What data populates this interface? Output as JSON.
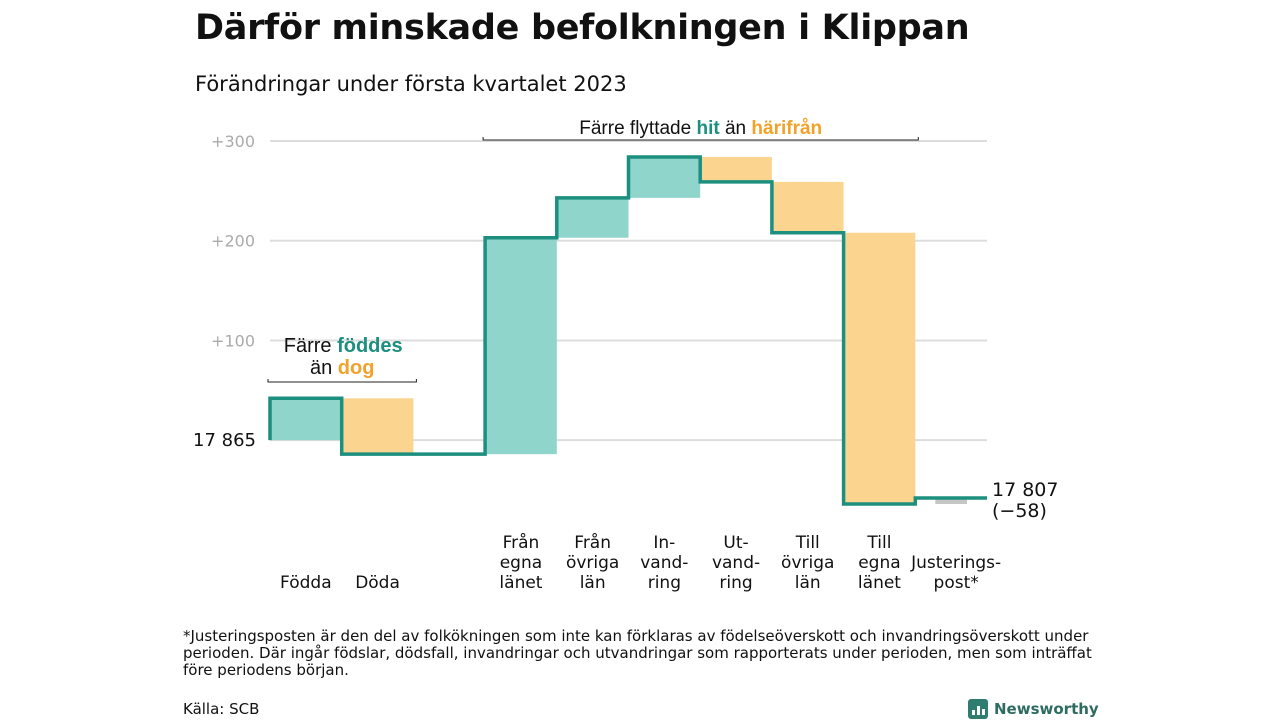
{
  "header": {
    "title": "Därför minskade befolkningen i Klippan",
    "subtitle": "Förändringar under första kvartalet 2023"
  },
  "chart_data": {
    "type": "waterfall",
    "baseline": {
      "value": 17865,
      "label": "17 865"
    },
    "end": {
      "value": 17807,
      "label": "17 807",
      "change_label": "(−58)"
    },
    "y_axis": {
      "range": [
        -65,
        302
      ],
      "ticks": [
        {
          "value": 100,
          "label": "+100"
        },
        {
          "value": 200,
          "label": "+200"
        },
        {
          "value": 300,
          "label": "+300"
        }
      ],
      "grid": true
    },
    "steps": [
      {
        "name": "Födda",
        "label_lines": [
          "Födda"
        ],
        "from": 0,
        "to": 42,
        "kind": "in"
      },
      {
        "name": "Döda",
        "label_lines": [
          "Döda"
        ],
        "from": 42,
        "to": -14,
        "kind": "out"
      },
      {
        "name": "",
        "label_lines": [],
        "from": -14,
        "to": -14,
        "kind": "gap"
      },
      {
        "name": "Från egna länet",
        "label_lines": [
          "Från",
          "egna",
          "länet"
        ],
        "from": -14,
        "to": 203,
        "kind": "in"
      },
      {
        "name": "Från övriga län",
        "label_lines": [
          "Från",
          "övriga",
          "län"
        ],
        "from": 203,
        "to": 243,
        "kind": "in"
      },
      {
        "name": "Invandring",
        "label_lines": [
          "In-",
          "vand-",
          "ring"
        ],
        "from": 243,
        "to": 284,
        "kind": "in"
      },
      {
        "name": "Utvandring",
        "label_lines": [
          "Ut-",
          "vand-",
          "ring"
        ],
        "from": 284,
        "to": 259,
        "kind": "out"
      },
      {
        "name": "Till övriga län",
        "label_lines": [
          "Till",
          "övriga",
          "län"
        ],
        "from": 259,
        "to": 208,
        "kind": "out"
      },
      {
        "name": "Till egna länet",
        "label_lines": [
          "Till",
          "egna",
          "länet"
        ],
        "from": 208,
        "to": -64,
        "kind": "out"
      },
      {
        "name": "Justeringspost*",
        "label_lines": [
          "Justerings-",
          "post*"
        ],
        "from": -64,
        "to": -58,
        "kind": "adjust"
      }
    ],
    "annotations": [
      {
        "id": "births-deaths",
        "start_step": 0,
        "end_step": 1,
        "line1": [
          "Färre ",
          "föddes"
        ],
        "line2": [
          "än ",
          "dog"
        ]
      },
      {
        "id": "migration",
        "start_step": 3,
        "end_step": 8,
        "line1": [
          "Färre flyttade ",
          "hit",
          " än ",
          "härifrån"
        ]
      }
    ],
    "colors": {
      "in": "#8fd5cc",
      "out": "#fbd590",
      "adjust": "#c6c6c6",
      "line": "#1c8f7f",
      "accent_in": "#1c8f7f",
      "accent_out": "#f2a22a",
      "grid": "#dddddd",
      "tick_text": "#aaaaaa"
    }
  },
  "footnote": "*Justeringsposten är den del av folkökningen som inte kan förklaras av födelseöverskott och invandringsöverskott under perioden. Där ingår födslar, dödsfall, invandringar och utvandringar som rapporterats under perioden, men som inträffat före periodens början.",
  "source": "Källa: SCB",
  "brand": {
    "name": "Newsworthy",
    "icon": "bar-chart-icon"
  }
}
